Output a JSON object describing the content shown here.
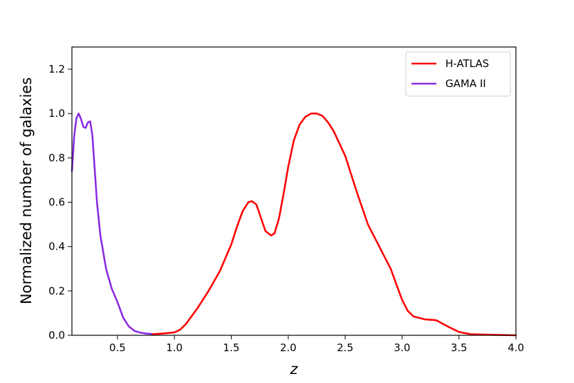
{
  "chart_data": {
    "type": "line",
    "xlabel": "z",
    "ylabel": "Normalized number of galaxies",
    "xlim": [
      0.1,
      4.0
    ],
    "ylim": [
      0.0,
      1.3
    ],
    "xticks": [
      "0.5",
      "1.0",
      "1.5",
      "2.0",
      "2.5",
      "3.0",
      "3.5",
      "4.0"
    ],
    "yticks": [
      "0.0",
      "0.2",
      "0.4",
      "0.6",
      "0.8",
      "1.0",
      "1.2"
    ],
    "grid": false,
    "legend_position": "top-right",
    "series": [
      {
        "name": "H-ATLAS",
        "color": "#ff0000",
        "x": [
          0.8,
          0.9,
          1.0,
          1.05,
          1.1,
          1.2,
          1.3,
          1.4,
          1.5,
          1.55,
          1.6,
          1.65,
          1.68,
          1.72,
          1.76,
          1.8,
          1.85,
          1.88,
          1.92,
          1.96,
          2.0,
          2.05,
          2.1,
          2.15,
          2.2,
          2.25,
          2.3,
          2.35,
          2.4,
          2.5,
          2.6,
          2.7,
          2.8,
          2.9,
          3.0,
          3.05,
          3.1,
          3.2,
          3.3,
          3.4,
          3.5,
          3.6,
          3.8,
          4.0
        ],
        "values": [
          0.005,
          0.008,
          0.013,
          0.025,
          0.05,
          0.12,
          0.2,
          0.29,
          0.41,
          0.49,
          0.56,
          0.6,
          0.605,
          0.59,
          0.53,
          0.47,
          0.45,
          0.46,
          0.53,
          0.64,
          0.76,
          0.88,
          0.95,
          0.985,
          1.0,
          1.0,
          0.99,
          0.96,
          0.92,
          0.81,
          0.65,
          0.5,
          0.4,
          0.3,
          0.16,
          0.11,
          0.085,
          0.072,
          0.068,
          0.04,
          0.015,
          0.005,
          0.002,
          0.0
        ]
      },
      {
        "name": "GAMA II",
        "color": "#8a2be2",
        "x": [
          0.1,
          0.12,
          0.14,
          0.16,
          0.18,
          0.2,
          0.22,
          0.24,
          0.26,
          0.28,
          0.3,
          0.32,
          0.35,
          0.4,
          0.45,
          0.5,
          0.55,
          0.6,
          0.65,
          0.7,
          0.75,
          0.8
        ],
        "values": [
          0.74,
          0.9,
          0.98,
          1.0,
          0.975,
          0.94,
          0.935,
          0.96,
          0.965,
          0.9,
          0.75,
          0.6,
          0.45,
          0.3,
          0.21,
          0.15,
          0.08,
          0.04,
          0.02,
          0.012,
          0.008,
          0.006
        ]
      }
    ]
  }
}
